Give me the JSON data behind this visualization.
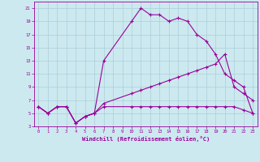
{
  "xlabel": "Windchill (Refroidissement éolien,°C)",
  "bg_color": "#cde9f0",
  "grid_color": "#aaced8",
  "line_color": "#990099",
  "xlim": [
    -0.5,
    23.5
  ],
  "ylim": [
    3,
    22
  ],
  "xticks": [
    0,
    1,
    2,
    3,
    4,
    5,
    6,
    7,
    8,
    9,
    10,
    11,
    12,
    13,
    14,
    15,
    16,
    17,
    18,
    19,
    20,
    21,
    22,
    23
  ],
  "yticks": [
    3,
    5,
    7,
    9,
    11,
    13,
    15,
    17,
    19,
    21
  ],
  "line1_x": [
    0,
    1,
    2,
    3,
    4,
    5,
    6,
    7,
    10,
    11,
    12,
    13,
    14,
    15,
    16,
    17,
    18,
    19,
    20,
    21,
    22,
    23
  ],
  "line1_y": [
    6,
    5,
    6,
    6,
    3.5,
    4.5,
    5,
    13,
    19,
    21,
    20,
    20,
    19,
    19.5,
    19,
    17,
    16,
    14,
    11,
    10,
    9,
    5
  ],
  "line2_x": [
    0,
    1,
    2,
    3,
    4,
    5,
    6,
    7,
    10,
    11,
    12,
    13,
    14,
    15,
    16,
    17,
    18,
    19,
    20,
    21,
    22,
    23
  ],
  "line2_y": [
    6,
    5,
    6,
    6,
    3.5,
    4.5,
    5,
    6.5,
    8,
    8.5,
    9,
    9.5,
    10,
    10.5,
    11,
    11.5,
    12,
    12.5,
    14,
    9,
    8,
    7
  ],
  "line3_x": [
    0,
    1,
    2,
    3,
    4,
    5,
    6,
    7,
    10,
    11,
    12,
    13,
    14,
    15,
    16,
    17,
    18,
    19,
    20,
    21,
    22,
    23
  ],
  "line3_y": [
    6,
    5,
    6,
    6,
    3.5,
    4.5,
    5,
    6,
    6,
    6,
    6,
    6,
    6,
    6,
    6,
    6,
    6,
    6,
    6,
    6,
    5.5,
    5
  ]
}
